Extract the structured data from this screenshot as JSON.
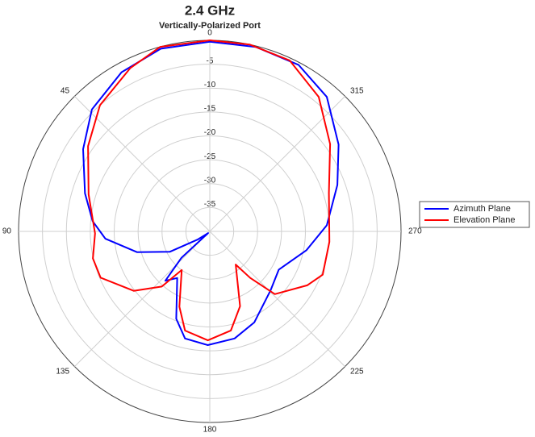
{
  "chart_data": {
    "type": "polar",
    "title": "2.4 GHz",
    "subtitle": "Vertically-Polarized Port",
    "theta_direction": "counterclockwise",
    "theta_zero": "top",
    "rlim": [
      -40,
      0
    ],
    "rticks": [
      -5,
      -10,
      -15,
      -20,
      -25,
      -30,
      -35
    ],
    "thetaticks": [
      0,
      45,
      90,
      135,
      180,
      225,
      270,
      315
    ],
    "grid": true,
    "legend": "right",
    "series": [
      {
        "name": "Azimuth Plane",
        "color": "#0000ff",
        "theta": [
          0,
          15,
          29,
          44,
          57,
          73,
          85,
          94,
          106,
          117,
          124,
          135,
          133,
          138,
          145,
          159,
          167,
          179,
          193,
          206,
          226,
          241,
          259,
          273,
          290,
          304,
          319,
          332,
          346
        ],
        "values": [
          -0.3,
          -0.4,
          -1.9,
          -4.5,
          -8.4,
          -12.7,
          -15.4,
          -18.1,
          -24.2,
          -30.6,
          -37,
          -39.5,
          -31.9,
          -26.1,
          -28.1,
          -20.4,
          -17,
          -16.2,
          -17,
          -18.8,
          -22.3,
          -23.5,
          -19.4,
          -15.5,
          -11.6,
          -7.5,
          -2.7,
          -0.5,
          -0.2
        ]
      },
      {
        "name": "Elevation Plane",
        "color": "#ff0000",
        "theta": [
          0,
          15,
          26,
          41,
          55,
          73,
          91,
          103,
          113,
          128,
          139,
          144,
          158,
          166,
          179,
          192,
          202,
          218,
          221,
          226,
          241,
          249,
          265,
          288,
          306,
          321,
          335,
          348
        ],
        "values": [
          0,
          0,
          -2,
          -5,
          -8.9,
          -13.5,
          -16,
          -14.9,
          -15.2,
          -19.8,
          -24.7,
          -30,
          -23,
          -18.6,
          -17.2,
          -18.8,
          -23.1,
          -31.2,
          -27.1,
          -21.1,
          -16.7,
          -14.7,
          -14.9,
          -13.8,
          -8.9,
          -3.8,
          -0.5,
          0
        ]
      }
    ]
  }
}
